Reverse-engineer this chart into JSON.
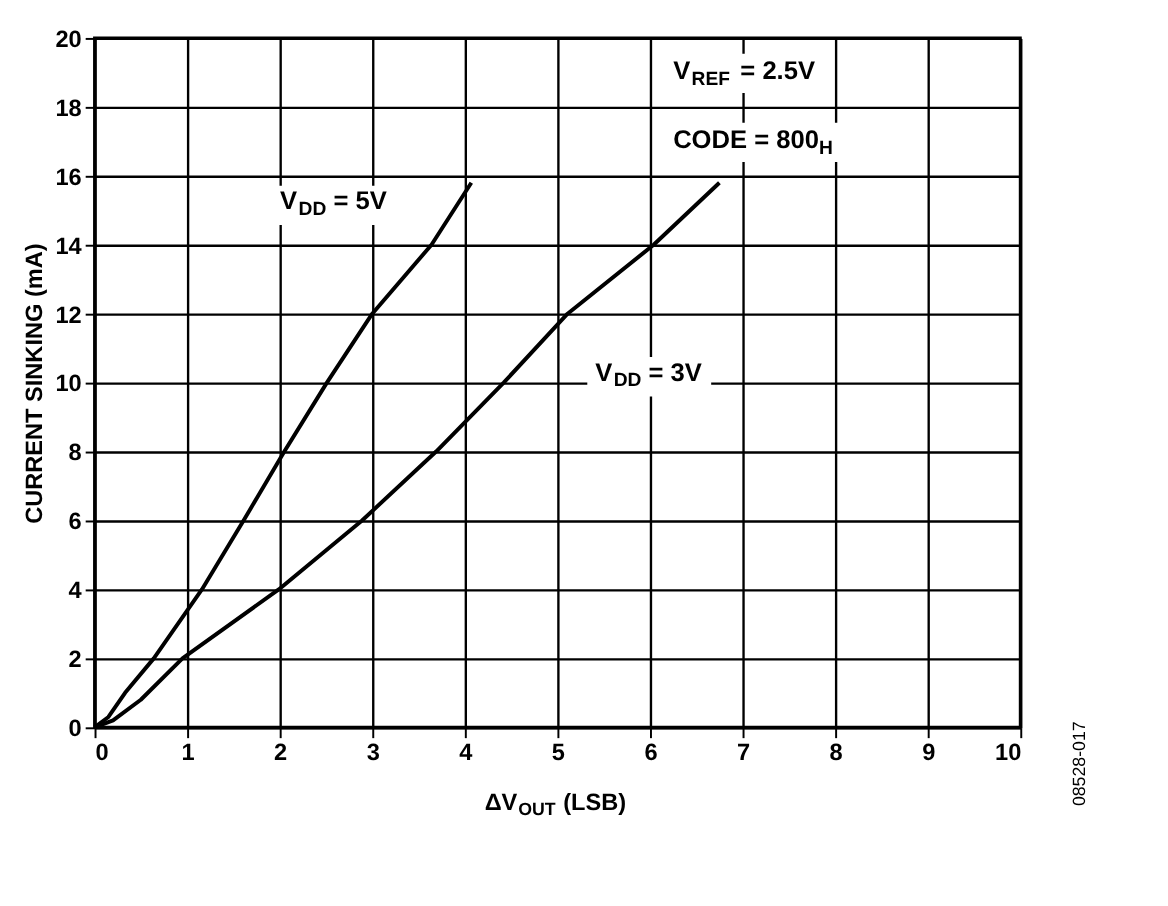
{
  "chart_data": {
    "type": "line",
    "xlabel": "ΔV$_{OUT}$ (LSB)",
    "ylabel": "CURRENT SINKING (mA)",
    "series": [
      {
        "color": "#000000",
        "x": [
          0,
          0.15,
          0.33,
          0.64,
          1.16,
          1.61,
          2.05,
          2.51,
          3.0,
          3.64,
          4.07
        ],
        "values": [
          0,
          0.3,
          1,
          2,
          4,
          6,
          8,
          10,
          12,
          14,
          15.8
        ]
      },
      {
        "color": "#000000",
        "x": [
          0,
          0.2,
          0.5,
          0.95,
          1.99,
          2.89,
          3.69,
          4.42,
          5.11,
          6.04,
          6.75
        ],
        "values": [
          0,
          0.2,
          0.8,
          2,
          4,
          6,
          8,
          10,
          12,
          14,
          15.8
        ]
      }
    ],
    "xlim": [
      0,
      10
    ],
    "xticks": [
      0,
      1,
      2,
      3,
      4,
      5,
      6,
      7,
      8,
      9,
      10
    ],
    "ylim": [
      0,
      20
    ],
    "yticks": [
      0,
      2,
      4,
      6,
      8,
      10,
      12,
      14,
      16,
      18,
      20
    ],
    "grid": true,
    "line_style": "solid",
    "marker": "none",
    "annotations": [
      {
        "text": "V$_{DD}$ = 5V",
        "x": 3.64,
        "y": 14
      },
      {
        "text": "V$_{DD}$ = 3V",
        "x": 5.11,
        "y": 12
      },
      "V$_{REF}$ = 2.5V",
      "CODE = 800$_{H}$",
      "08528-017"
    ]
  }
}
